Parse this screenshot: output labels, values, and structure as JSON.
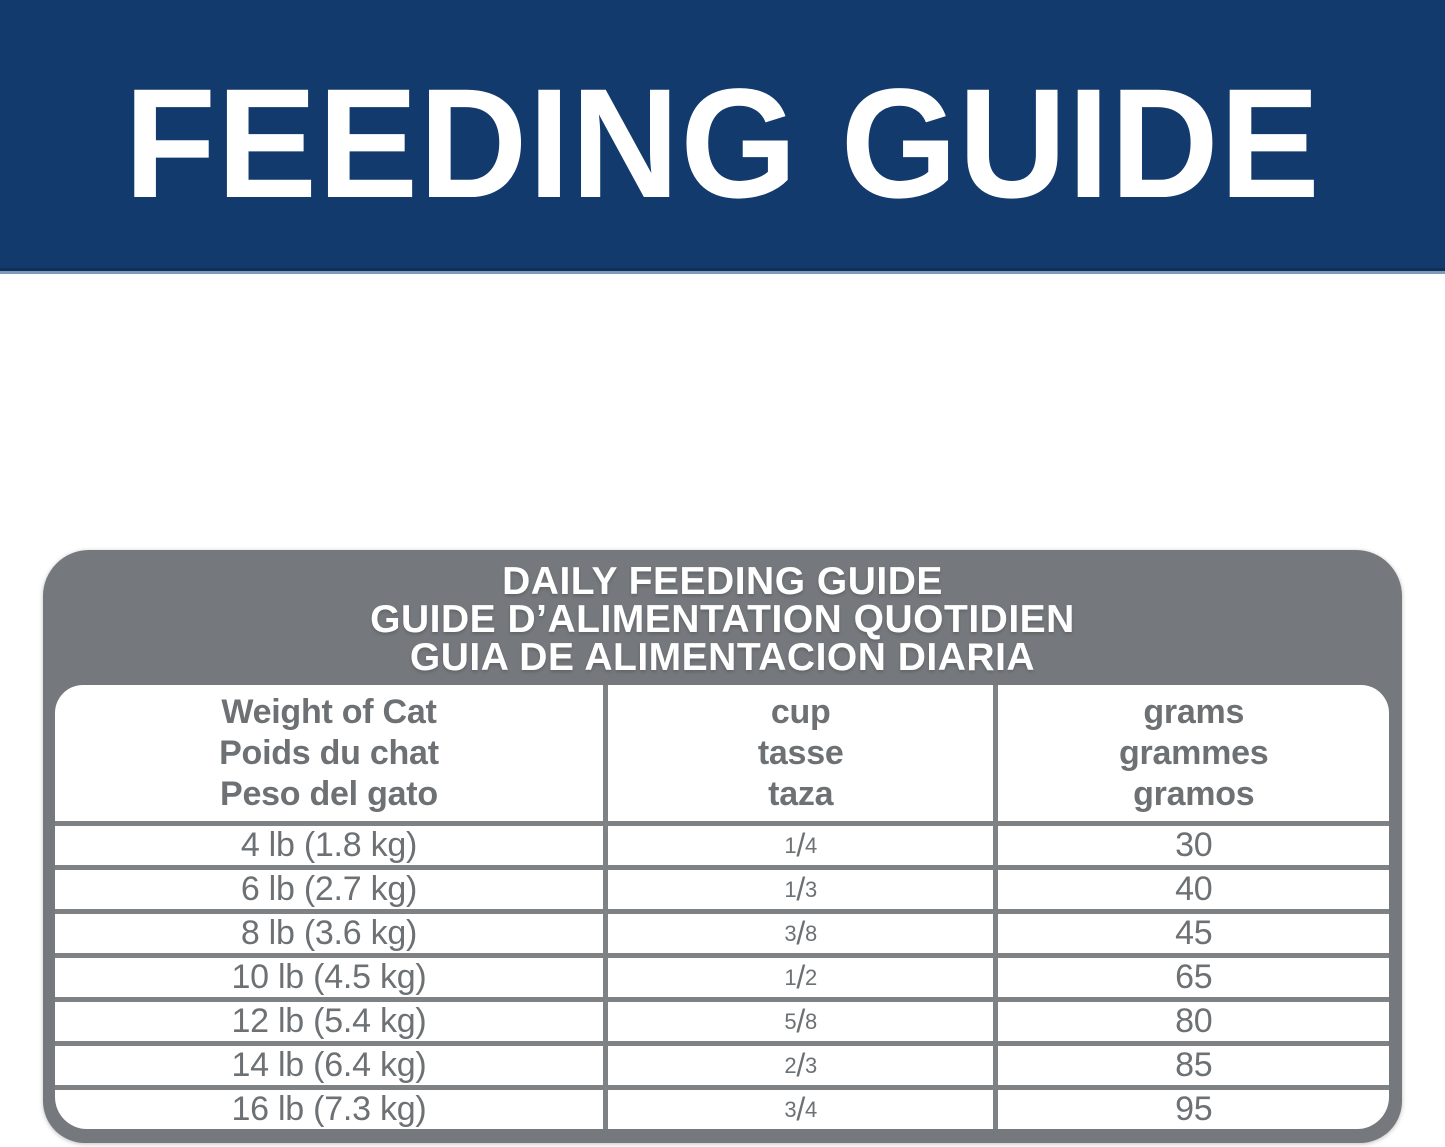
{
  "banner": {
    "title": "FEEDING GUIDE",
    "background_color": "#133a6c",
    "accent_line_color": "#7e99ba"
  },
  "table": {
    "header_background_color": "#75797d",
    "line_color": "#7e8285",
    "text_color": "#6d7174",
    "title_lines": {
      "en": "DAILY FEEDING GUIDE",
      "fr": "GUIDE D’ALIMENTATION QUOTIDIEN",
      "es": "GUIA DE ALIMENTACION DIARIA"
    },
    "columns": [
      {
        "lines": [
          "Weight of Cat",
          "Poids du chat",
          "Peso del gato"
        ]
      },
      {
        "lines": [
          "cup",
          "tasse",
          "taza"
        ]
      },
      {
        "lines": [
          "grams",
          "grammes",
          "gramos"
        ]
      }
    ],
    "fraction_slash": "/",
    "rows": [
      {
        "weight": "4 lb (1.8 kg)",
        "cup_num": "1",
        "cup_den": "4",
        "grams": "30"
      },
      {
        "weight": "6 lb (2.7 kg)",
        "cup_num": "1",
        "cup_den": "3",
        "grams": "40"
      },
      {
        "weight": "8 lb (3.6 kg)",
        "cup_num": "3",
        "cup_den": "8",
        "grams": "45"
      },
      {
        "weight": "10 lb (4.5 kg)",
        "cup_num": "1",
        "cup_den": "2",
        "grams": "65"
      },
      {
        "weight": "12 lb (5.4 kg)",
        "cup_num": "5",
        "cup_den": "8",
        "grams": "80"
      },
      {
        "weight": "14 lb (6.4 kg)",
        "cup_num": "2",
        "cup_den": "3",
        "grams": "85"
      },
      {
        "weight": "16 lb (7.3 kg)",
        "cup_num": "3",
        "cup_den": "4",
        "grams": "95"
      }
    ]
  }
}
